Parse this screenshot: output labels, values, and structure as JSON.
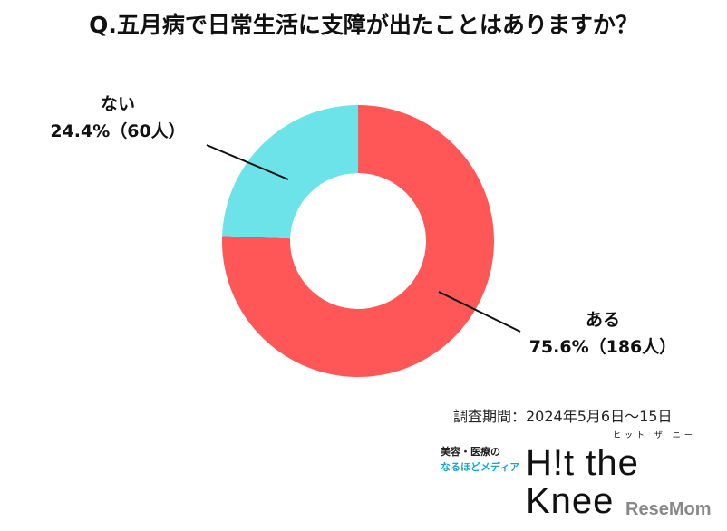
{
  "chart_data": {
    "type": "pie",
    "donut": true,
    "title": "Q.五月病で日常生活に支障が出たことはありますか？",
    "slices": [
      {
        "label": "ある",
        "percent": 75.6,
        "count_label": "75.6%（186人）",
        "value": 186,
        "color": "#FF5757"
      },
      {
        "label": "ない",
        "percent": 24.4,
        "count_label": "24.4%（60人）",
        "value": 60,
        "color": "#6CE3E8"
      }
    ]
  },
  "footer": {
    "period": "調査期間：2024年5月6日～15日",
    "logo_line1": "美容・医療の",
    "logo_line2": "なるほどメディア",
    "logo_main": "H!t the Knee",
    "logo_ruby": "ヒット ザ ニー",
    "watermark": "ReseMom"
  }
}
